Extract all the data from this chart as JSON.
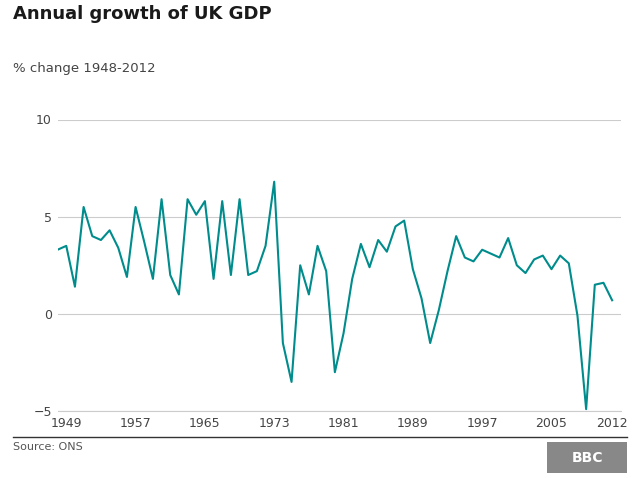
{
  "title": "Annual growth of UK GDP",
  "subtitle": "% change 1948-2012",
  "source_text": "Source: ONS",
  "line_color": "#008c8c",
  "background_color": "#ffffff",
  "grid_color": "#cccccc",
  "years": [
    1948,
    1949,
    1950,
    1951,
    1952,
    1953,
    1954,
    1955,
    1956,
    1957,
    1958,
    1959,
    1960,
    1961,
    1962,
    1963,
    1964,
    1965,
    1966,
    1967,
    1968,
    1969,
    1970,
    1971,
    1972,
    1973,
    1974,
    1975,
    1976,
    1977,
    1978,
    1979,
    1980,
    1981,
    1982,
    1983,
    1984,
    1985,
    1986,
    1987,
    1988,
    1989,
    1990,
    1991,
    1992,
    1993,
    1994,
    1995,
    1996,
    1997,
    1998,
    1999,
    2000,
    2001,
    2002,
    2003,
    2004,
    2005,
    2006,
    2007,
    2008,
    2009,
    2010,
    2011,
    2012
  ],
  "values": [
    3.3,
    3.5,
    1.4,
    5.5,
    4.0,
    3.8,
    4.3,
    3.4,
    1.9,
    5.5,
    3.7,
    1.8,
    5.9,
    2.0,
    1.0,
    5.9,
    5.1,
    5.8,
    1.8,
    5.8,
    2.0,
    5.9,
    2.0,
    2.2,
    3.5,
    6.8,
    -1.5,
    -3.5,
    2.5,
    1.0,
    3.5,
    2.2,
    -3.0,
    -1.0,
    1.8,
    3.6,
    2.4,
    3.8,
    3.2,
    4.5,
    4.8,
    2.3,
    0.8,
    -1.5,
    0.2,
    2.2,
    4.0,
    2.9,
    2.7,
    3.3,
    3.1,
    2.9,
    3.9,
    2.5,
    2.1,
    2.8,
    3.0,
    2.3,
    3.0,
    2.6,
    -0.1,
    -4.9,
    1.5,
    1.6,
    0.7
  ],
  "xlim": [
    1948,
    2013
  ],
  "ylim": [
    -5,
    10
  ],
  "yticks": [
    -5,
    0,
    5,
    10
  ],
  "xticks": [
    1949,
    1957,
    1965,
    1973,
    1981,
    1989,
    1997,
    2005,
    2012
  ],
  "line_width": 1.5,
  "bbc_color": "#888888"
}
